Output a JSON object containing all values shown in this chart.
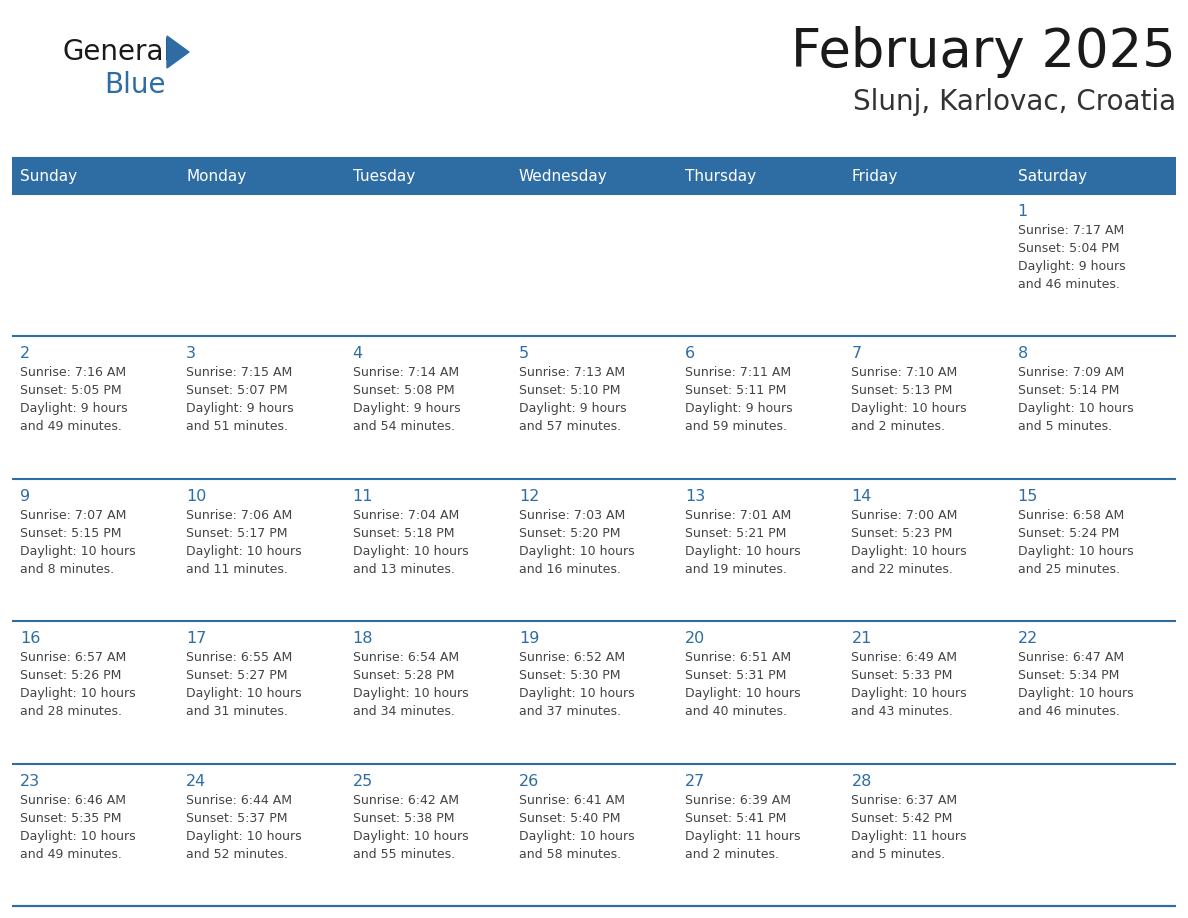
{
  "title": "February 2025",
  "subtitle": "Slunj, Karlovac, Croatia",
  "days_of_week": [
    "Sunday",
    "Monday",
    "Tuesday",
    "Wednesday",
    "Thursday",
    "Friday",
    "Saturday"
  ],
  "header_bg": "#2E6DA4",
  "header_text": "#FFFFFF",
  "cell_bg": "#FFFFFF",
  "day_number_color": "#2E6DA4",
  "info_text_color": "#444444",
  "row_border_color": "#2E6DA4",
  "logo_general_color": "#1a1a1a",
  "logo_blue_color": "#2E6DA4",
  "title_color": "#1a1a1a",
  "subtitle_color": "#333333",
  "calendar_data": [
    {
      "day": 1,
      "row": 0,
      "col": 6,
      "sunrise": "7:17 AM",
      "sunset": "5:04 PM",
      "daylight": "9 hours and 46 minutes."
    },
    {
      "day": 2,
      "row": 1,
      "col": 0,
      "sunrise": "7:16 AM",
      "sunset": "5:05 PM",
      "daylight": "9 hours and 49 minutes."
    },
    {
      "day": 3,
      "row": 1,
      "col": 1,
      "sunrise": "7:15 AM",
      "sunset": "5:07 PM",
      "daylight": "9 hours and 51 minutes."
    },
    {
      "day": 4,
      "row": 1,
      "col": 2,
      "sunrise": "7:14 AM",
      "sunset": "5:08 PM",
      "daylight": "9 hours and 54 minutes."
    },
    {
      "day": 5,
      "row": 1,
      "col": 3,
      "sunrise": "7:13 AM",
      "sunset": "5:10 PM",
      "daylight": "9 hours and 57 minutes."
    },
    {
      "day": 6,
      "row": 1,
      "col": 4,
      "sunrise": "7:11 AM",
      "sunset": "5:11 PM",
      "daylight": "9 hours and 59 minutes."
    },
    {
      "day": 7,
      "row": 1,
      "col": 5,
      "sunrise": "7:10 AM",
      "sunset": "5:13 PM",
      "daylight": "10 hours and 2 minutes."
    },
    {
      "day": 8,
      "row": 1,
      "col": 6,
      "sunrise": "7:09 AM",
      "sunset": "5:14 PM",
      "daylight": "10 hours and 5 minutes."
    },
    {
      "day": 9,
      "row": 2,
      "col": 0,
      "sunrise": "7:07 AM",
      "sunset": "5:15 PM",
      "daylight": "10 hours and 8 minutes."
    },
    {
      "day": 10,
      "row": 2,
      "col": 1,
      "sunrise": "7:06 AM",
      "sunset": "5:17 PM",
      "daylight": "10 hours and 11 minutes."
    },
    {
      "day": 11,
      "row": 2,
      "col": 2,
      "sunrise": "7:04 AM",
      "sunset": "5:18 PM",
      "daylight": "10 hours and 13 minutes."
    },
    {
      "day": 12,
      "row": 2,
      "col": 3,
      "sunrise": "7:03 AM",
      "sunset": "5:20 PM",
      "daylight": "10 hours and 16 minutes."
    },
    {
      "day": 13,
      "row": 2,
      "col": 4,
      "sunrise": "7:01 AM",
      "sunset": "5:21 PM",
      "daylight": "10 hours and 19 minutes."
    },
    {
      "day": 14,
      "row": 2,
      "col": 5,
      "sunrise": "7:00 AM",
      "sunset": "5:23 PM",
      "daylight": "10 hours and 22 minutes."
    },
    {
      "day": 15,
      "row": 2,
      "col": 6,
      "sunrise": "6:58 AM",
      "sunset": "5:24 PM",
      "daylight": "10 hours and 25 minutes."
    },
    {
      "day": 16,
      "row": 3,
      "col": 0,
      "sunrise": "6:57 AM",
      "sunset": "5:26 PM",
      "daylight": "10 hours and 28 minutes."
    },
    {
      "day": 17,
      "row": 3,
      "col": 1,
      "sunrise": "6:55 AM",
      "sunset": "5:27 PM",
      "daylight": "10 hours and 31 minutes."
    },
    {
      "day": 18,
      "row": 3,
      "col": 2,
      "sunrise": "6:54 AM",
      "sunset": "5:28 PM",
      "daylight": "10 hours and 34 minutes."
    },
    {
      "day": 19,
      "row": 3,
      "col": 3,
      "sunrise": "6:52 AM",
      "sunset": "5:30 PM",
      "daylight": "10 hours and 37 minutes."
    },
    {
      "day": 20,
      "row": 3,
      "col": 4,
      "sunrise": "6:51 AM",
      "sunset": "5:31 PM",
      "daylight": "10 hours and 40 minutes."
    },
    {
      "day": 21,
      "row": 3,
      "col": 5,
      "sunrise": "6:49 AM",
      "sunset": "5:33 PM",
      "daylight": "10 hours and 43 minutes."
    },
    {
      "day": 22,
      "row": 3,
      "col": 6,
      "sunrise": "6:47 AM",
      "sunset": "5:34 PM",
      "daylight": "10 hours and 46 minutes."
    },
    {
      "day": 23,
      "row": 4,
      "col": 0,
      "sunrise": "6:46 AM",
      "sunset": "5:35 PM",
      "daylight": "10 hours and 49 minutes."
    },
    {
      "day": 24,
      "row": 4,
      "col": 1,
      "sunrise": "6:44 AM",
      "sunset": "5:37 PM",
      "daylight": "10 hours and 52 minutes."
    },
    {
      "day": 25,
      "row": 4,
      "col": 2,
      "sunrise": "6:42 AM",
      "sunset": "5:38 PM",
      "daylight": "10 hours and 55 minutes."
    },
    {
      "day": 26,
      "row": 4,
      "col": 3,
      "sunrise": "6:41 AM",
      "sunset": "5:40 PM",
      "daylight": "10 hours and 58 minutes."
    },
    {
      "day": 27,
      "row": 4,
      "col": 4,
      "sunrise": "6:39 AM",
      "sunset": "5:41 PM",
      "daylight": "11 hours and 2 minutes."
    },
    {
      "day": 28,
      "row": 4,
      "col": 5,
      "sunrise": "6:37 AM",
      "sunset": "5:42 PM",
      "daylight": "11 hours and 5 minutes."
    }
  ],
  "num_rows": 5,
  "num_cols": 7,
  "figsize": [
    11.88,
    9.18
  ],
  "dpi": 100
}
